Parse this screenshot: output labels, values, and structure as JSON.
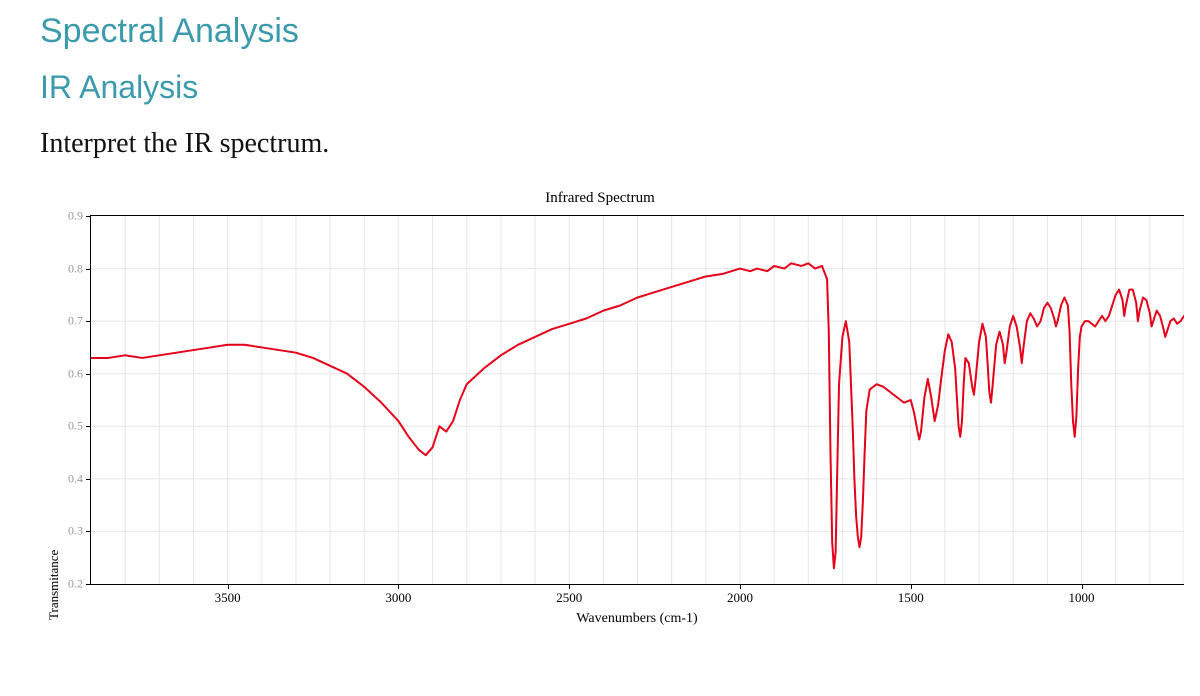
{
  "headings": {
    "h1": "Spectral Analysis",
    "h2": "IR Analysis",
    "prompt": "Interpret the IR spectrum."
  },
  "chart": {
    "type": "line",
    "title": "Infrared Spectrum",
    "xlabel": "Wavenumbers (cm-1)",
    "ylabel": "Transmitance",
    "x_reversed": true,
    "xlim": [
      3900,
      700
    ],
    "ylim": [
      0.2,
      0.9
    ],
    "yticks": [
      0.2,
      0.3,
      0.4,
      0.5,
      0.6,
      0.7,
      0.8,
      0.9
    ],
    "xticks": [
      3500,
      3000,
      2500,
      2000,
      1500,
      1000
    ],
    "grid_color": "#e6e6e6",
    "grid_interval_x": 100,
    "line_color": "#e4001b",
    "line_width": 2,
    "background_color": "#ffffff",
    "title_fontsize": 15,
    "label_fontsize": 13,
    "tick_fontsize": 12,
    "series": [
      [
        3900,
        0.63
      ],
      [
        3850,
        0.63
      ],
      [
        3800,
        0.635
      ],
      [
        3750,
        0.63
      ],
      [
        3700,
        0.635
      ],
      [
        3650,
        0.64
      ],
      [
        3600,
        0.645
      ],
      [
        3550,
        0.65
      ],
      [
        3500,
        0.655
      ],
      [
        3450,
        0.655
      ],
      [
        3400,
        0.65
      ],
      [
        3350,
        0.645
      ],
      [
        3300,
        0.64
      ],
      [
        3250,
        0.63
      ],
      [
        3200,
        0.615
      ],
      [
        3150,
        0.6
      ],
      [
        3100,
        0.575
      ],
      [
        3050,
        0.545
      ],
      [
        3000,
        0.51
      ],
      [
        2970,
        0.48
      ],
      [
        2940,
        0.455
      ],
      [
        2920,
        0.445
      ],
      [
        2900,
        0.46
      ],
      [
        2880,
        0.5
      ],
      [
        2860,
        0.49
      ],
      [
        2840,
        0.51
      ],
      [
        2820,
        0.55
      ],
      [
        2800,
        0.58
      ],
      [
        2750,
        0.61
      ],
      [
        2700,
        0.635
      ],
      [
        2650,
        0.655
      ],
      [
        2600,
        0.67
      ],
      [
        2550,
        0.685
      ],
      [
        2500,
        0.695
      ],
      [
        2450,
        0.705
      ],
      [
        2400,
        0.72
      ],
      [
        2350,
        0.73
      ],
      [
        2300,
        0.745
      ],
      [
        2250,
        0.755
      ],
      [
        2200,
        0.765
      ],
      [
        2150,
        0.775
      ],
      [
        2100,
        0.785
      ],
      [
        2050,
        0.79
      ],
      [
        2000,
        0.8
      ],
      [
        1970,
        0.795
      ],
      [
        1950,
        0.8
      ],
      [
        1920,
        0.795
      ],
      [
        1900,
        0.805
      ],
      [
        1870,
        0.8
      ],
      [
        1850,
        0.81
      ],
      [
        1820,
        0.805
      ],
      [
        1800,
        0.81
      ],
      [
        1780,
        0.8
      ],
      [
        1760,
        0.805
      ],
      [
        1745,
        0.78
      ],
      [
        1740,
        0.68
      ],
      [
        1735,
        0.45
      ],
      [
        1730,
        0.28
      ],
      [
        1725,
        0.23
      ],
      [
        1720,
        0.26
      ],
      [
        1715,
        0.42
      ],
      [
        1710,
        0.58
      ],
      [
        1700,
        0.67
      ],
      [
        1690,
        0.7
      ],
      [
        1680,
        0.66
      ],
      [
        1670,
        0.5
      ],
      [
        1665,
        0.4
      ],
      [
        1660,
        0.33
      ],
      [
        1655,
        0.29
      ],
      [
        1650,
        0.27
      ],
      [
        1645,
        0.29
      ],
      [
        1640,
        0.36
      ],
      [
        1635,
        0.45
      ],
      [
        1630,
        0.53
      ],
      [
        1620,
        0.57
      ],
      [
        1600,
        0.58
      ],
      [
        1580,
        0.575
      ],
      [
        1560,
        0.565
      ],
      [
        1540,
        0.555
      ],
      [
        1520,
        0.545
      ],
      [
        1500,
        0.55
      ],
      [
        1490,
        0.525
      ],
      [
        1480,
        0.49
      ],
      [
        1475,
        0.475
      ],
      [
        1470,
        0.49
      ],
      [
        1460,
        0.555
      ],
      [
        1450,
        0.59
      ],
      [
        1440,
        0.555
      ],
      [
        1430,
        0.51
      ],
      [
        1420,
        0.54
      ],
      [
        1410,
        0.595
      ],
      [
        1400,
        0.645
      ],
      [
        1390,
        0.675
      ],
      [
        1380,
        0.66
      ],
      [
        1370,
        0.61
      ],
      [
        1365,
        0.555
      ],
      [
        1360,
        0.5
      ],
      [
        1355,
        0.48
      ],
      [
        1350,
        0.51
      ],
      [
        1345,
        0.58
      ],
      [
        1340,
        0.63
      ],
      [
        1330,
        0.62
      ],
      [
        1320,
        0.575
      ],
      [
        1315,
        0.56
      ],
      [
        1310,
        0.59
      ],
      [
        1300,
        0.66
      ],
      [
        1290,
        0.695
      ],
      [
        1280,
        0.67
      ],
      [
        1275,
        0.62
      ],
      [
        1270,
        0.565
      ],
      [
        1265,
        0.545
      ],
      [
        1260,
        0.58
      ],
      [
        1250,
        0.655
      ],
      [
        1240,
        0.68
      ],
      [
        1230,
        0.655
      ],
      [
        1225,
        0.62
      ],
      [
        1220,
        0.64
      ],
      [
        1210,
        0.69
      ],
      [
        1200,
        0.71
      ],
      [
        1190,
        0.69
      ],
      [
        1180,
        0.65
      ],
      [
        1175,
        0.62
      ],
      [
        1170,
        0.65
      ],
      [
        1160,
        0.7
      ],
      [
        1150,
        0.715
      ],
      [
        1140,
        0.705
      ],
      [
        1130,
        0.69
      ],
      [
        1120,
        0.7
      ],
      [
        1110,
        0.725
      ],
      [
        1100,
        0.735
      ],
      [
        1090,
        0.725
      ],
      [
        1080,
        0.705
      ],
      [
        1075,
        0.69
      ],
      [
        1070,
        0.7
      ],
      [
        1060,
        0.73
      ],
      [
        1050,
        0.745
      ],
      [
        1040,
        0.73
      ],
      [
        1035,
        0.68
      ],
      [
        1030,
        0.58
      ],
      [
        1025,
        0.51
      ],
      [
        1020,
        0.48
      ],
      [
        1015,
        0.52
      ],
      [
        1010,
        0.61
      ],
      [
        1005,
        0.67
      ],
      [
        1000,
        0.69
      ],
      [
        990,
        0.7
      ],
      [
        980,
        0.7
      ],
      [
        970,
        0.695
      ],
      [
        960,
        0.69
      ],
      [
        950,
        0.7
      ],
      [
        940,
        0.71
      ],
      [
        930,
        0.7
      ],
      [
        920,
        0.71
      ],
      [
        910,
        0.73
      ],
      [
        900,
        0.75
      ],
      [
        890,
        0.76
      ],
      [
        880,
        0.74
      ],
      [
        875,
        0.71
      ],
      [
        870,
        0.73
      ],
      [
        860,
        0.76
      ],
      [
        850,
        0.76
      ],
      [
        840,
        0.735
      ],
      [
        835,
        0.7
      ],
      [
        830,
        0.72
      ],
      [
        820,
        0.745
      ],
      [
        810,
        0.74
      ],
      [
        800,
        0.715
      ],
      [
        795,
        0.69
      ],
      [
        790,
        0.7
      ],
      [
        780,
        0.72
      ],
      [
        770,
        0.71
      ],
      [
        760,
        0.685
      ],
      [
        755,
        0.67
      ],
      [
        750,
        0.68
      ],
      [
        740,
        0.7
      ],
      [
        730,
        0.705
      ],
      [
        720,
        0.695
      ],
      [
        710,
        0.7
      ],
      [
        700,
        0.71
      ]
    ]
  }
}
